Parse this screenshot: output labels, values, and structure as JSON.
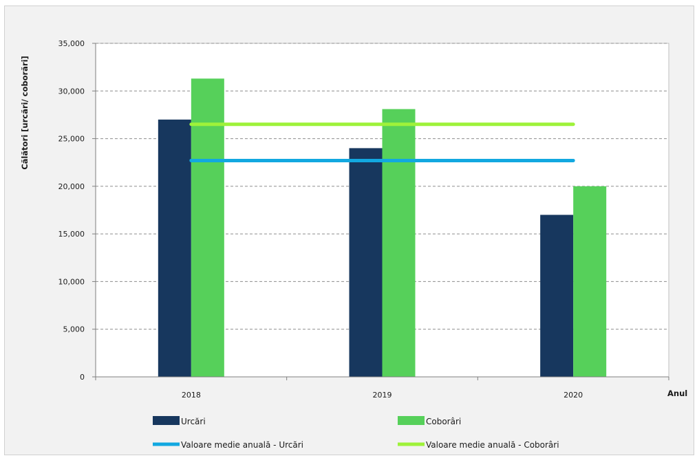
{
  "chart_data": {
    "type": "bar",
    "title": "",
    "xlabel": "Anul",
    "ylabel": "Călători [urcări/ coborări]",
    "categories": [
      "2018",
      "2019",
      "2020"
    ],
    "ylim": [
      0,
      35000
    ],
    "yticks": [
      0,
      5000,
      10000,
      15000,
      20000,
      25000,
      30000,
      35000
    ],
    "ytick_labels": [
      "0",
      "5,000",
      "10,000",
      "15,000",
      "20,000",
      "25,000",
      "30,000",
      "35,000"
    ],
    "grid": true,
    "legend_position": "bottom",
    "series": [
      {
        "name": "Urcări",
        "kind": "bar",
        "color": "#17375e",
        "values": [
          27000,
          24000,
          17000
        ]
      },
      {
        "name": "Coborâri",
        "kind": "bar",
        "color": "#56d05a",
        "values": [
          31300,
          28100,
          20000
        ]
      },
      {
        "name": "Valoare medie anuală - Urcări",
        "kind": "line",
        "color": "#12a8e0",
        "values": [
          22700,
          22700,
          22700
        ]
      },
      {
        "name": "Valoare medie anuală - Coborâri",
        "kind": "line",
        "color": "#9ef23a",
        "values": [
          26500,
          26500,
          26500
        ]
      }
    ]
  }
}
